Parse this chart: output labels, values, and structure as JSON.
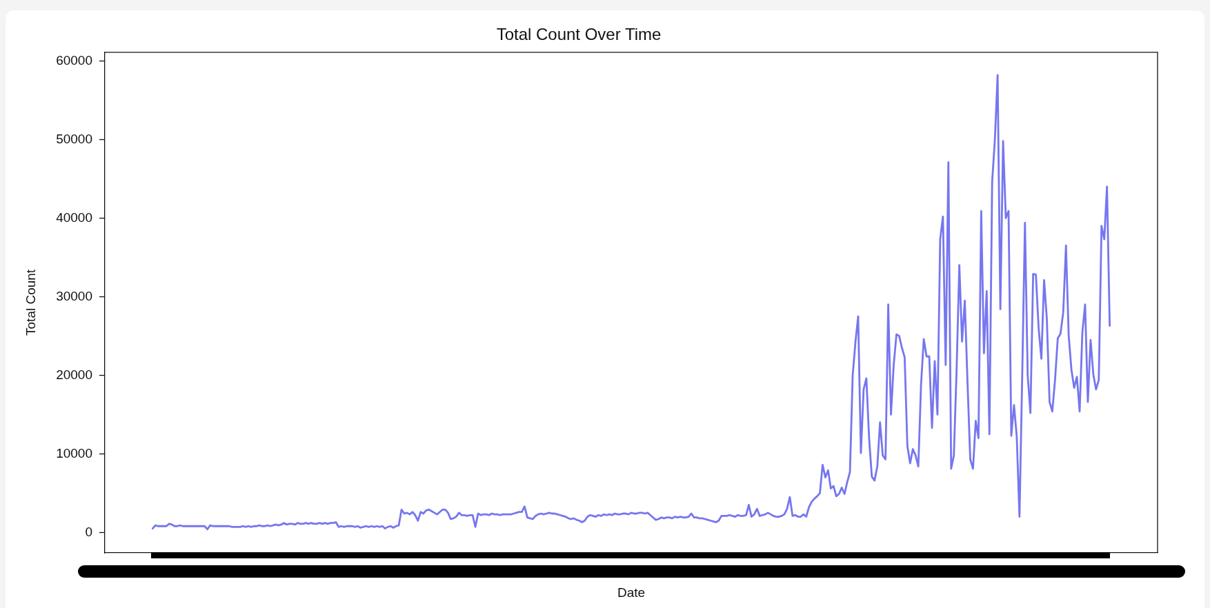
{
  "chart_data": {
    "type": "line",
    "title": "Total Count Over Time",
    "xlabel": "Date",
    "ylabel": "Total Count",
    "categories": [
      null,
      null,
      null,
      null,
      null,
      null,
      null,
      null,
      null,
      null,
      null,
      null,
      null,
      null,
      null,
      null,
      null,
      null,
      null,
      null,
      null,
      null,
      null,
      null,
      null,
      null,
      null,
      null,
      null,
      null,
      null,
      null,
      null,
      null,
      null,
      null,
      null,
      null,
      null,
      null,
      null,
      null,
      null,
      null,
      null,
      null,
      null,
      null,
      null,
      null,
      null,
      null,
      null,
      null,
      null,
      null,
      null,
      null,
      null,
      null,
      null,
      null,
      null,
      null,
      null,
      null,
      null,
      null,
      null,
      null,
      null,
      null,
      null,
      null,
      null,
      null,
      null,
      null,
      null,
      null,
      null,
      null,
      null,
      null,
      null,
      null,
      null,
      null,
      null,
      null,
      null,
      null,
      null,
      null,
      null,
      null,
      null,
      null,
      null,
      null,
      null,
      null,
      null,
      null,
      null,
      null,
      null,
      null,
      null,
      null,
      null,
      null,
      null,
      null,
      null,
      null,
      null,
      null,
      null,
      null,
      null,
      null,
      null,
      null,
      null,
      null,
      null,
      null,
      null,
      null,
      null,
      null,
      null,
      null,
      null,
      null,
      null,
      null,
      null,
      null,
      null,
      null,
      null,
      null,
      null,
      null,
      null,
      null,
      null,
      null,
      null,
      null,
      null,
      null,
      null,
      null,
      null,
      null,
      null,
      null,
      null,
      null,
      null,
      null,
      null,
      null,
      null,
      null,
      null,
      null,
      null,
      null,
      null,
      null,
      null,
      null,
      null,
      null,
      null,
      null,
      null,
      null,
      null,
      null,
      null,
      null,
      null,
      null,
      null,
      null,
      null,
      null,
      null,
      null,
      null,
      null,
      null,
      null,
      null,
      null,
      null,
      null,
      null,
      null,
      null,
      null,
      null,
      null,
      null,
      null,
      null,
      null,
      null,
      null,
      null,
      null,
      null,
      null,
      null,
      null,
      null,
      null,
      null,
      null,
      null,
      null,
      null,
      null,
      null,
      null,
      null,
      null,
      null,
      null,
      null,
      null,
      null,
      null,
      null,
      null,
      null,
      null,
      null,
      null,
      null,
      null,
      null,
      null,
      null,
      null,
      null,
      null,
      null,
      null,
      null,
      null,
      null,
      null,
      null,
      null,
      null,
      null,
      null,
      null,
      null,
      null,
      null,
      null,
      null,
      null,
      null,
      null,
      null,
      null,
      null,
      null,
      null,
      null,
      null,
      null,
      null,
      null,
      null,
      null,
      null,
      null,
      null,
      null,
      null,
      null,
      null,
      null,
      null,
      null,
      null,
      null,
      null,
      null,
      null,
      null,
      null,
      null,
      null,
      null,
      null,
      null,
      null,
      null,
      null,
      null,
      null,
      null,
      null,
      null,
      null,
      null,
      null,
      null,
      null,
      null,
      null,
      null,
      null,
      null,
      null,
      null,
      null,
      null,
      null,
      null,
      null,
      null,
      null,
      null,
      null,
      null,
      null,
      null,
      null,
      null,
      null,
      null,
      null,
      null,
      null,
      null,
      null,
      null,
      null,
      null,
      null
    ],
    "series": [
      {
        "color": "#7676f0",
        "values": [
          500,
          900,
          800,
          800,
          800,
          800,
          1100,
          1000,
          800,
          800,
          900,
          800,
          800,
          800,
          800,
          800,
          800,
          800,
          800,
          800,
          400,
          900,
          800,
          800,
          800,
          800,
          800,
          800,
          800,
          700,
          700,
          700,
          700,
          800,
          700,
          800,
          700,
          800,
          800,
          900,
          800,
          800,
          900,
          800,
          900,
          1000,
          900,
          1000,
          1200,
          1000,
          1100,
          1100,
          1000,
          1200,
          1100,
          1100,
          1200,
          1100,
          1200,
          1100,
          1100,
          1200,
          1100,
          1200,
          1100,
          1200,
          1200,
          1300,
          700,
          800,
          700,
          800,
          800,
          800,
          700,
          800,
          600,
          700,
          800,
          700,
          800,
          700,
          800,
          700,
          800,
          500,
          700,
          800,
          600,
          800,
          900,
          2900,
          2400,
          2500,
          2300,
          2600,
          2200,
          1500,
          2600,
          2400,
          2800,
          2900,
          2700,
          2500,
          2300,
          2600,
          2900,
          2900,
          2500,
          1700,
          1800,
          2000,
          2500,
          2200,
          2200,
          2100,
          2200,
          2200,
          700,
          2400,
          2200,
          2300,
          2300,
          2200,
          2400,
          2300,
          2300,
          2200,
          2300,
          2300,
          2300,
          2300,
          2400,
          2500,
          2600,
          2600,
          3300,
          1900,
          1800,
          1700,
          2100,
          2300,
          2400,
          2300,
          2400,
          2500,
          2400,
          2400,
          2300,
          2200,
          2100,
          2000,
          1800,
          1700,
          1800,
          1600,
          1500,
          1300,
          1500,
          2000,
          2200,
          2100,
          2000,
          2200,
          2100,
          2300,
          2200,
          2300,
          2200,
          2400,
          2300,
          2300,
          2400,
          2400,
          2300,
          2500,
          2400,
          2400,
          2500,
          2500,
          2400,
          2500,
          2200,
          1900,
          1600,
          1700,
          1900,
          1800,
          1900,
          1900,
          1800,
          2000,
          1900,
          2000,
          1900,
          1900,
          2000,
          2400,
          1900,
          1900,
          1800,
          1800,
          1700,
          1600,
          1500,
          1400,
          1300,
          1500,
          2100,
          2100,
          2100,
          2200,
          2100,
          2000,
          2200,
          2100,
          2100,
          2200,
          3500,
          2000,
          2300,
          3000,
          2100,
          2200,
          2300,
          2500,
          2300,
          2100,
          2000,
          2000,
          2100,
          2300,
          3000,
          4500,
          2100,
          2200,
          2000,
          2000,
          2300,
          2000,
          3200,
          3900,
          4300,
          4600,
          5000,
          8600,
          7000,
          7900,
          5600,
          5900,
          4600,
          4900,
          5700,
          4900,
          6400,
          7700,
          20000,
          24200,
          27500,
          10100,
          18200,
          19600,
          12000,
          7100,
          6600,
          8400,
          14000,
          9800,
          9300,
          29000,
          15000,
          21300,
          25200,
          25000,
          23500,
          22300,
          11000,
          8800,
          10600,
          9800,
          8400,
          18800,
          24600,
          22400,
          22400,
          13300,
          21800,
          15000,
          37300,
          40200,
          21300,
          47100,
          8100,
          9800,
          20700,
          34000,
          24300,
          29500,
          19000,
          9300,
          8100,
          14200,
          12000,
          40900,
          22800,
          30700,
          12500,
          44600,
          50000,
          58200,
          28400,
          49800,
          40000,
          40900,
          12300,
          16200,
          12200,
          2000,
          20000,
          39400,
          20000,
          15200,
          32900,
          32800,
          26000,
          22100,
          32100,
          27200,
          16600,
          15400,
          19400,
          24700,
          25300,
          28000,
          36500,
          25000,
          20700,
          18400,
          19800,
          15400,
          25500,
          29000,
          16600,
          24500,
          20100,
          18200,
          19400,
          39000,
          37300,
          44000,
          26300
        ]
      }
    ],
    "ylim": [
      -2600,
      61100
    ],
    "yticks": [
      0,
      10000,
      20000,
      30000,
      40000,
      50000,
      60000
    ]
  }
}
